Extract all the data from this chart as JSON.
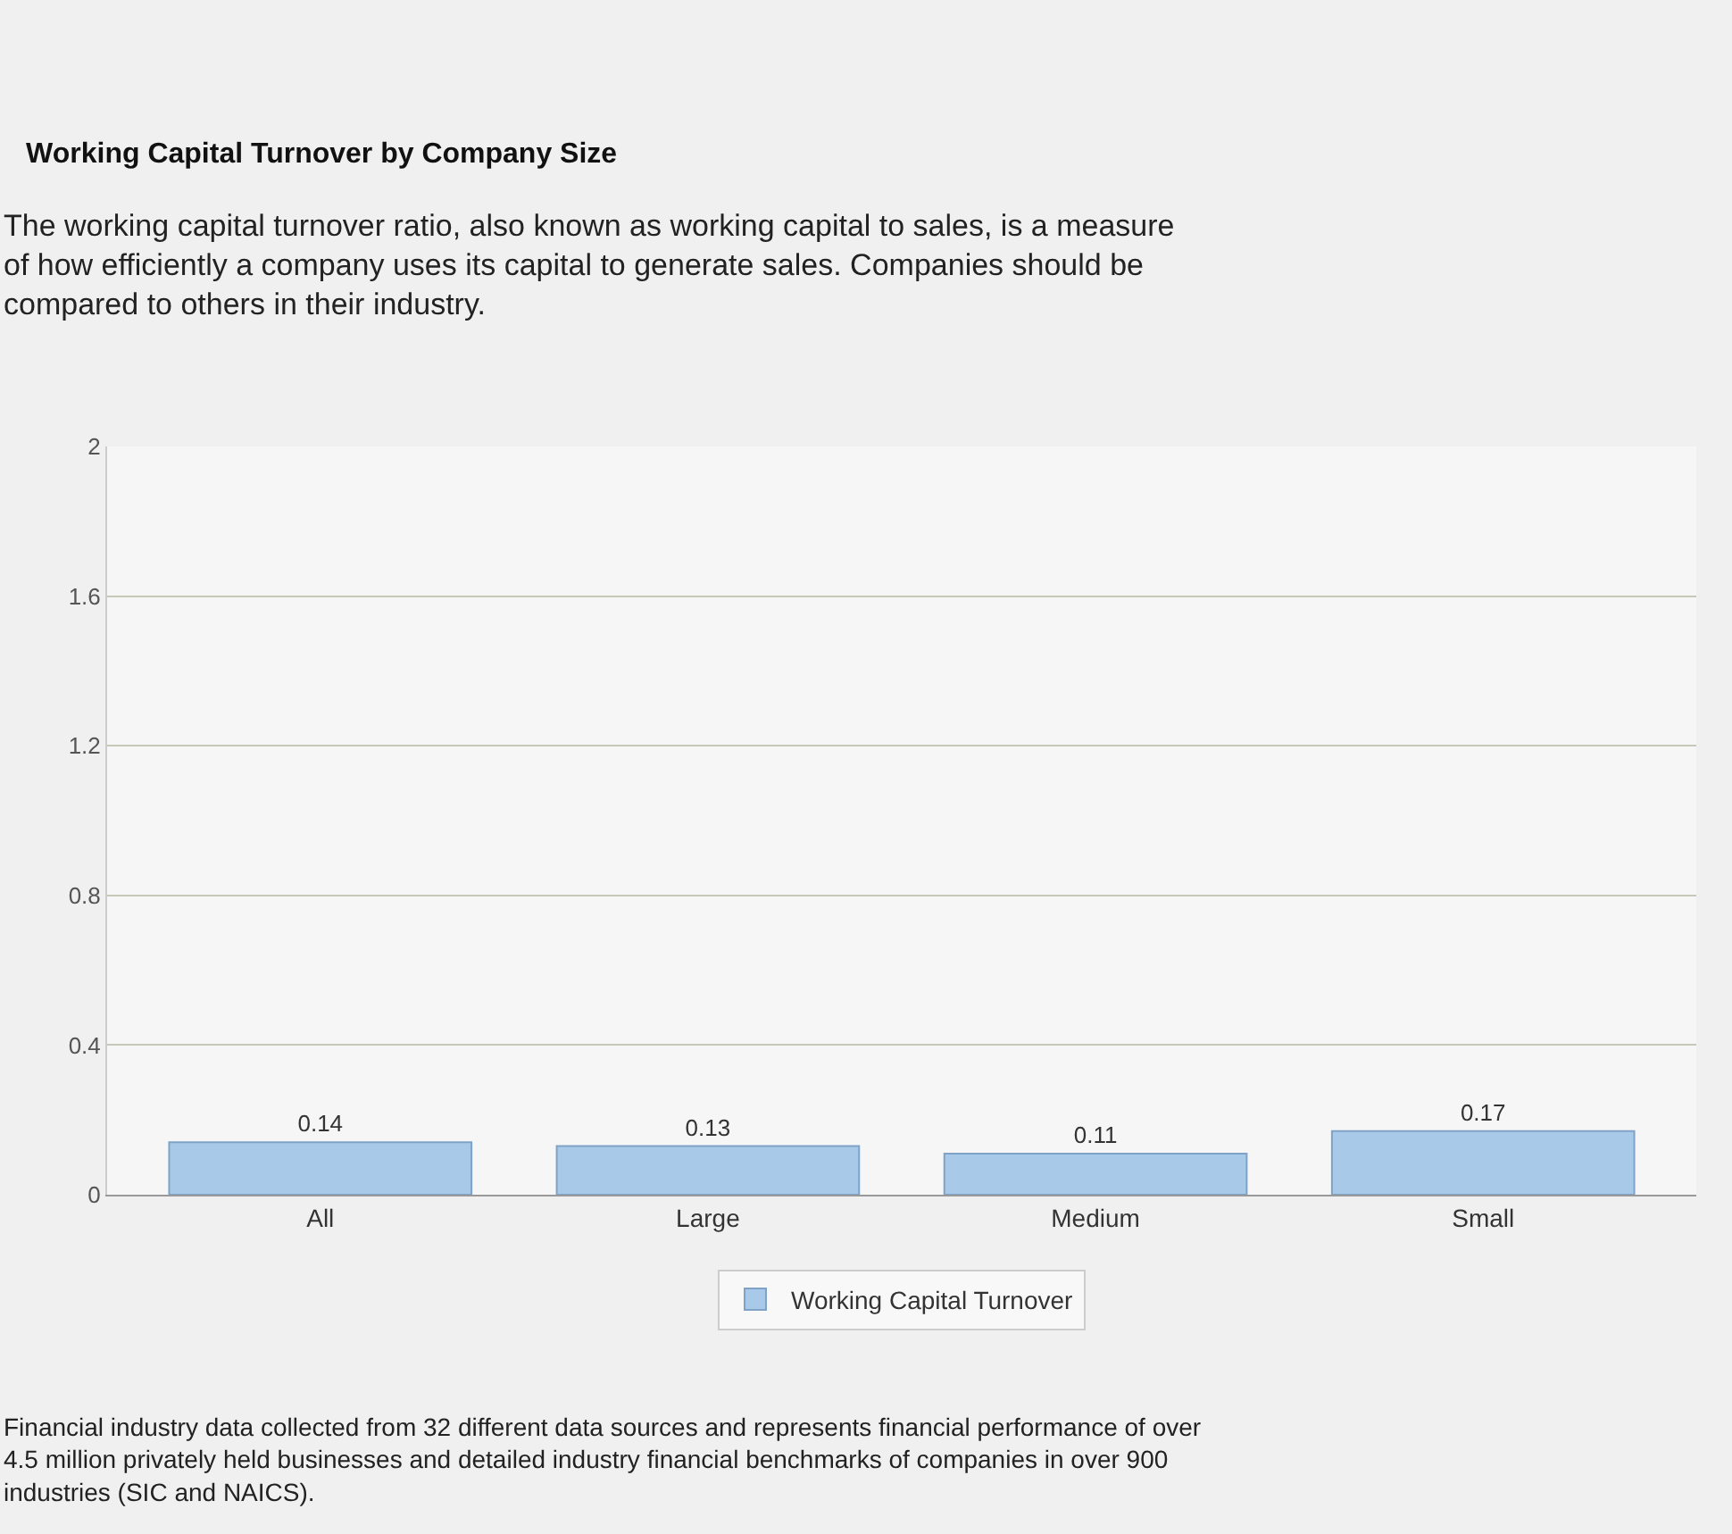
{
  "chart_data": {
    "type": "bar",
    "title": "Working Capital Turnover by Company Size",
    "subtitle": "The working capital turnover ratio, also known as working capital to sales, is a measure of how efficiently a company uses its capital to generate sales. Companies should be compared to others in their industry.",
    "categories": [
      "All",
      "Large",
      "Medium",
      "Small"
    ],
    "series": [
      {
        "name": "Working Capital Turnover",
        "color": "#a9c9e8",
        "values": [
          0.14,
          0.13,
          0.11,
          0.17
        ]
      }
    ],
    "ylim": [
      0,
      2
    ],
    "yticks": [
      0,
      0.4,
      0.8,
      1.2,
      1.6,
      2
    ],
    "grid": "y",
    "legend": "bottom",
    "data_labels": true,
    "annotations": [
      "Financial industry data collected from 32 different data sources and represents financial performance of over 4.5 million privately held businesses and detailed industry financial benchmarks of companies in over 900 industries (SIC and NAICS)."
    ]
  }
}
